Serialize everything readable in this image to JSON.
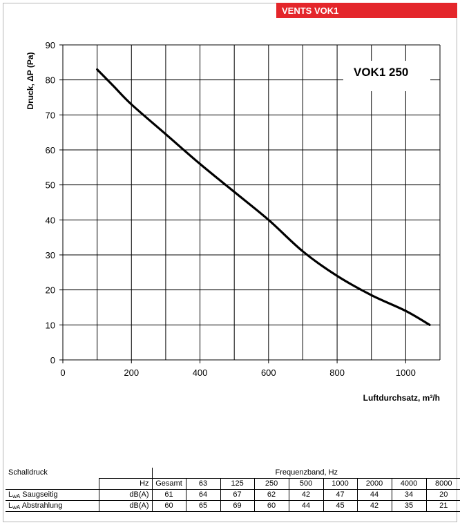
{
  "brand": {
    "label": "VENTS VOK1",
    "color": "#e4262b"
  },
  "chart_data": {
    "type": "line",
    "title": "",
    "legend_label": "VOK1 250",
    "legend_position": "top-right",
    "xlabel": "Luftdurchsatz, m³/h",
    "ylabel": "Druck, ΔP (Pa)",
    "xlim": [
      0,
      1100
    ],
    "ylim": [
      0,
      90
    ],
    "x_ticks": [
      0,
      200,
      400,
      600,
      800,
      1000
    ],
    "y_ticks": [
      0,
      10,
      20,
      30,
      40,
      50,
      60,
      70,
      80,
      90
    ],
    "grid": true,
    "series": [
      {
        "name": "VOK1 250",
        "color": "#000000",
        "x": [
          100,
          150,
          200,
          300,
          400,
          500,
          600,
          700,
          800,
          900,
          1000,
          1070
        ],
        "y": [
          83,
          78,
          73,
          64.5,
          56,
          48,
          40,
          31,
          24,
          18.5,
          14,
          10
        ]
      }
    ]
  },
  "sound_table": {
    "title": "Schalldruck",
    "band_header": "Frequenzband, Hz",
    "unit_header": "Hz",
    "frequencies": [
      "Gesamt",
      "63",
      "125",
      "250",
      "500",
      "1000",
      "2000",
      "4000",
      "8000"
    ],
    "rows": [
      {
        "label_main": "L",
        "label_sub": "wA",
        "label_rest": " Saugseitig",
        "unit": "dB(A)",
        "values": [
          "61",
          "64",
          "67",
          "62",
          "42",
          "47",
          "44",
          "34",
          "20"
        ]
      },
      {
        "label_main": "L",
        "label_sub": "wA",
        "label_rest": " Abstrahlung",
        "unit": "dB(A)",
        "values": [
          "60",
          "65",
          "69",
          "60",
          "44",
          "45",
          "42",
          "35",
          "21"
        ]
      }
    ]
  }
}
